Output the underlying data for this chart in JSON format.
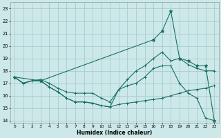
{
  "xlabel": "Humidex (Indice chaleur)",
  "xlim": [
    -0.5,
    23.5
  ],
  "ylim": [
    13.8,
    23.5
  ],
  "yticks": [
    14,
    15,
    16,
    17,
    18,
    19,
    20,
    21,
    22,
    23
  ],
  "xticks": [
    0,
    1,
    2,
    3,
    4,
    5,
    6,
    7,
    8,
    9,
    10,
    11,
    12,
    13,
    14,
    15,
    16,
    17,
    18,
    19,
    20,
    21,
    22,
    23
  ],
  "bg_color": "#cce8e8",
  "grid_color": "#aacccc",
  "line_color": "#1a7060",
  "line1_x": [
    0,
    1,
    2,
    3,
    4,
    5,
    6,
    7,
    8,
    9,
    10,
    11,
    12,
    13,
    14,
    15,
    16,
    17,
    18,
    19,
    20,
    21,
    22,
    23
  ],
  "line1_y": [
    17.5,
    17.0,
    17.2,
    17.2,
    16.7,
    16.3,
    15.8,
    15.5,
    15.5,
    15.4,
    15.2,
    15.1,
    15.3,
    15.4,
    15.5,
    15.6,
    15.7,
    15.8,
    16.0,
    16.2,
    16.4,
    16.5,
    16.6,
    16.8
  ],
  "line2_x": [
    0,
    1,
    2,
    3,
    4,
    5,
    6,
    7,
    8,
    9,
    10,
    11,
    12,
    13,
    14,
    15,
    16,
    17,
    18,
    19,
    20,
    21,
    22,
    23
  ],
  "line2_y": [
    17.5,
    17.0,
    17.2,
    17.2,
    16.7,
    16.3,
    15.8,
    15.5,
    15.5,
    15.4,
    15.2,
    15.1,
    16.5,
    16.8,
    17.0,
    17.5,
    18.2,
    18.4,
    18.4,
    17.0,
    16.2,
    15.8,
    14.2,
    14.0
  ],
  "line3_x": [
    0,
    1,
    2,
    3,
    4,
    5,
    6,
    7,
    8,
    9,
    10,
    11,
    12,
    13,
    14,
    15,
    16,
    17,
    18,
    19,
    20,
    21,
    22,
    23
  ],
  "line3_y": [
    17.5,
    17.0,
    17.2,
    17.3,
    17.0,
    16.6,
    16.3,
    16.2,
    16.2,
    16.2,
    15.8,
    15.5,
    16.5,
    17.3,
    18.0,
    18.4,
    19.0,
    19.5,
    18.8,
    19.0,
    18.5,
    18.2,
    18.0,
    18.0
  ],
  "line4_x": [
    0,
    3,
    16,
    17,
    18,
    19,
    20,
    21,
    22,
    23
  ],
  "line4_y": [
    17.5,
    17.2,
    20.5,
    21.2,
    22.8,
    19.0,
    18.8,
    18.4,
    18.4,
    14.0
  ]
}
